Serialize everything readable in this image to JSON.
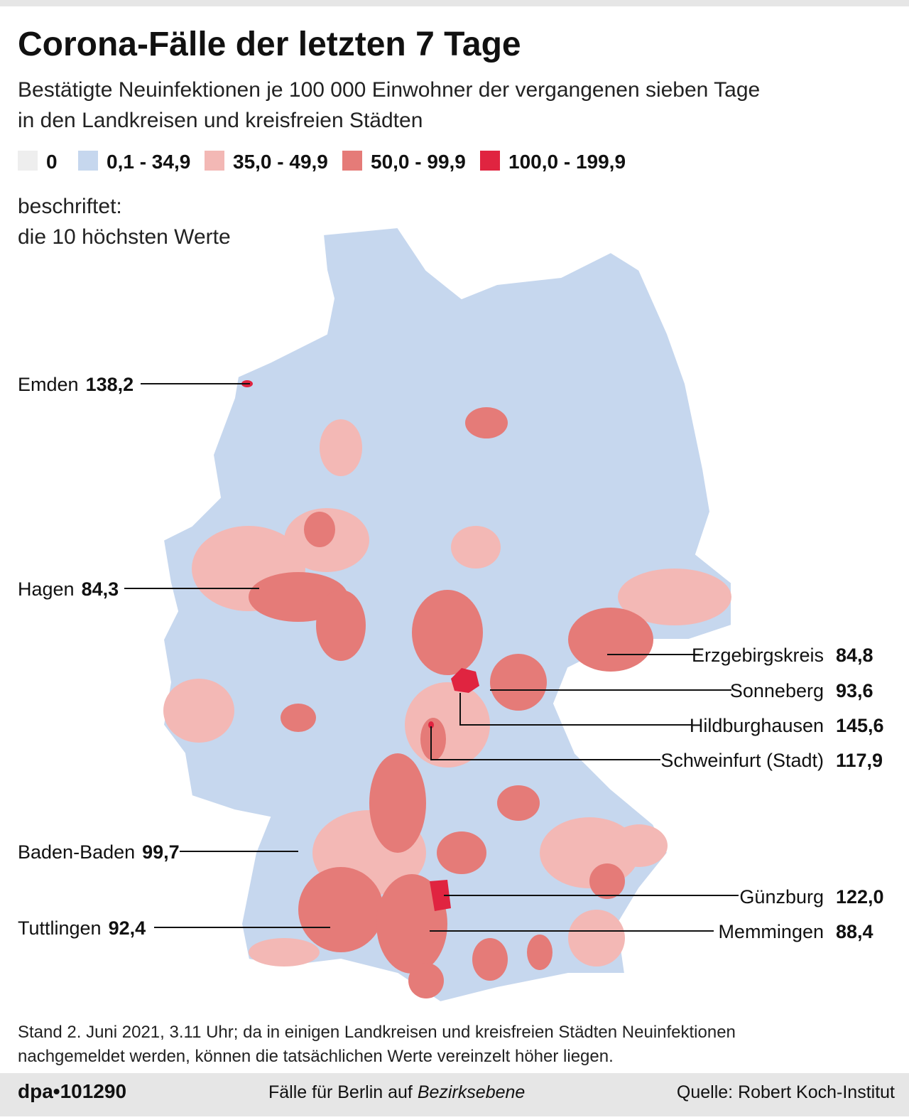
{
  "header": {
    "title": "Corona-Fälle der letzten 7 Tage",
    "subtitle": [
      "Bestätigte Neuinfektionen je 100 000 Einwohner der vergangenen sieben Tage",
      "in den Landkreisen und kreisfreien Städten"
    ]
  },
  "legend": [
    {
      "label": "0",
      "color": "#eeeeee"
    },
    {
      "label": "0,1 - 34,9",
      "color": "#c6d7ee"
    },
    {
      "label": "35,0 - 49,9",
      "color": "#f3b8b5"
    },
    {
      "label": "50,0 - 99,9",
      "color": "#e57b78"
    },
    {
      "label": "100,0 - 199,9",
      "color": "#e02440"
    }
  ],
  "note": [
    "beschriftet:",
    "die 10 höchsten Werte"
  ],
  "labels": [
    {
      "name": "Emden",
      "value": "138,2"
    },
    {
      "name": "Hagen",
      "value": "84,3"
    },
    {
      "name": "Baden-Baden",
      "value": "99,7"
    },
    {
      "name": "Tuttlingen",
      "value": "92,4"
    },
    {
      "name": "Erzgebirgskreis",
      "value": "84,8"
    },
    {
      "name": "Sonneberg",
      "value": "93,6"
    },
    {
      "name": "Hildburghausen",
      "value": "145,6"
    },
    {
      "name": "Schweinfurt (Stadt)",
      "value": "117,9"
    },
    {
      "name": "Günzburg",
      "value": "122,0"
    },
    {
      "name": "Memmingen",
      "value": "88,4"
    }
  ],
  "footnote": [
    "Stand 2. Juni 2021, 3.11 Uhr; da in einigen Landkreisen und kreisfreien Städten Neuinfektionen",
    "nachgemeldet werden, können die tatsächlichen Werte vereinzelt höher liegen."
  ],
  "footer": {
    "id": "dpa•101290",
    "center": [
      "Fälle für Berlin auf ",
      "Bezirksebene"
    ],
    "source": "Quelle: Robert Koch-Institut"
  }
}
